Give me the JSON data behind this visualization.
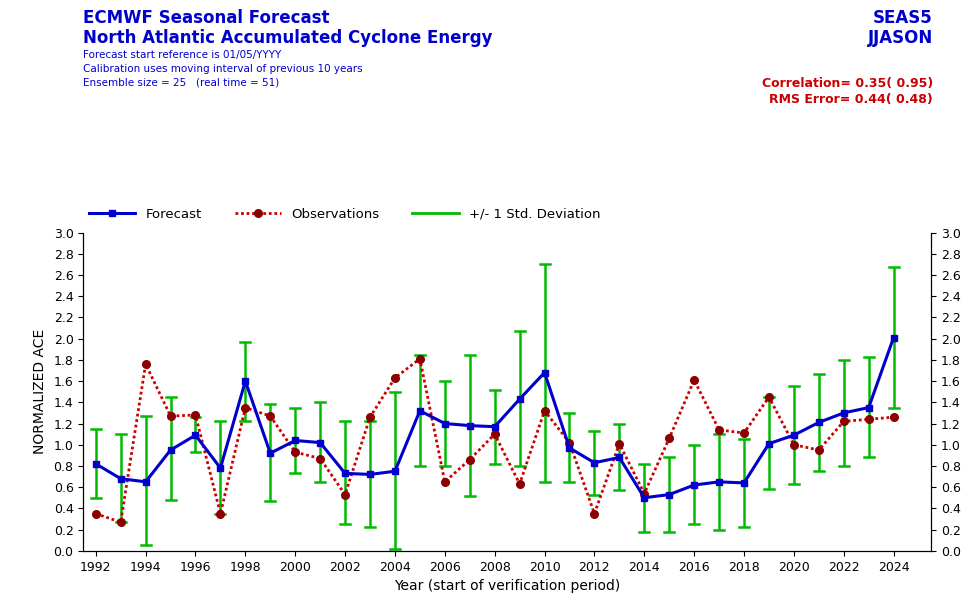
{
  "title_left1": "ECMWF Seasonal Forecast",
  "title_left2": "North Atlantic Accumulated Cyclone Energy",
  "subtitle1": "Forecast start reference is 01/05/YYYY",
  "subtitle2": "Calibration uses moving interval of previous 10 years",
  "subtitle3": "Ensemble size = 25   (real time = 51)",
  "title_right1": "SEAS5",
  "title_right2": "JJASON",
  "corr_text": "Correlation= 0.35( 0.95)",
  "rms_text": "RMS Error= 0.44( 0.48)",
  "xlabel": "Year (start of verification period)",
  "ylabel": "NORMALIZED ACE",
  "xlim": [
    1991.5,
    2025.5
  ],
  "ylim": [
    0,
    3.0
  ],
  "yticks": [
    0,
    0.2,
    0.4,
    0.6,
    0.8,
    1.0,
    1.2,
    1.4,
    1.6,
    1.8,
    2.0,
    2.2,
    2.4,
    2.6,
    2.8,
    3.0
  ],
  "xticks": [
    1992,
    1994,
    1996,
    1998,
    2000,
    2002,
    2004,
    2006,
    2008,
    2010,
    2012,
    2014,
    2016,
    2018,
    2020,
    2022,
    2024
  ],
  "years": [
    1992,
    1993,
    1994,
    1995,
    1996,
    1997,
    1998,
    1999,
    2000,
    2001,
    2002,
    2003,
    2004,
    2005,
    2006,
    2007,
    2008,
    2009,
    2010,
    2011,
    2012,
    2013,
    2014,
    2015,
    2016,
    2017,
    2018,
    2019,
    2020,
    2021,
    2022,
    2023,
    2024
  ],
  "forecast": [
    0.82,
    0.68,
    0.65,
    0.95,
    1.09,
    0.78,
    1.6,
    0.92,
    1.04,
    1.02,
    0.73,
    0.72,
    0.75,
    1.32,
    1.2,
    1.18,
    1.17,
    1.43,
    1.68,
    0.97,
    0.83,
    0.88,
    0.5,
    0.53,
    0.62,
    0.65,
    0.64,
    1.01,
    1.09,
    1.21,
    1.3,
    1.35,
    2.01
  ],
  "observations": [
    0.35,
    0.27,
    1.76,
    1.27,
    1.28,
    0.35,
    1.35,
    1.27,
    0.93,
    0.87,
    0.53,
    1.26,
    1.63,
    1.81,
    0.65,
    0.86,
    1.1,
    0.63,
    1.32,
    1.02,
    0.35,
    1.01,
    0.54,
    1.06,
    1.61,
    1.14,
    1.11,
    1.45,
    1.0,
    0.95,
    1.22,
    1.24,
    1.26
  ],
  "std_upper": [
    1.15,
    1.1,
    1.27,
    1.45,
    1.26,
    1.22,
    1.97,
    1.38,
    1.35,
    1.4,
    1.22,
    1.22,
    1.5,
    1.85,
    1.6,
    1.85,
    1.52,
    2.07,
    2.7,
    1.3,
    1.13,
    1.2,
    0.82,
    0.88,
    1.0,
    1.1,
    1.05,
    1.45,
    1.55,
    1.67,
    1.8,
    1.83,
    2.68
  ],
  "std_lower": [
    0.5,
    0.27,
    0.05,
    0.48,
    0.93,
    0.35,
    1.22,
    0.47,
    0.73,
    0.65,
    0.25,
    0.22,
    0.02,
    0.8,
    0.8,
    0.52,
    0.82,
    0.8,
    0.65,
    0.65,
    0.53,
    0.57,
    0.18,
    0.18,
    0.25,
    0.2,
    0.22,
    0.58,
    0.63,
    0.75,
    0.8,
    0.88,
    1.35
  ],
  "forecast_color": "#0000CC",
  "obs_color": "#CC0000",
  "std_color": "#00BB00",
  "title_color": "#0000CC",
  "corr_rms_color": "#CC0000",
  "background_color": "#ffffff",
  "legend_label_forecast": "Forecast",
  "legend_label_obs": "Observations",
  "legend_label_std": "+/- 1 Std. Deviation"
}
